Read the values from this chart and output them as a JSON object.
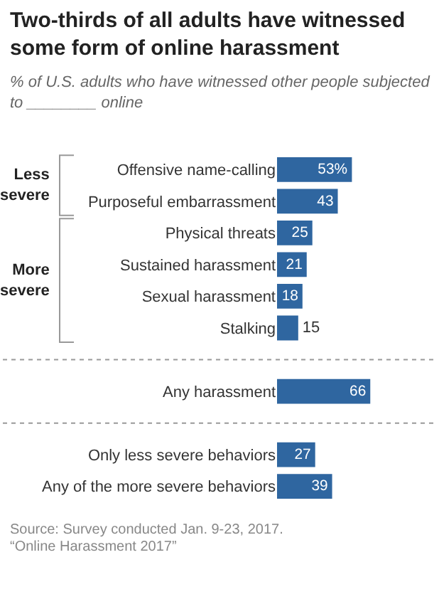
{
  "chart_data": {
    "type": "bar",
    "orientation": "horizontal",
    "title": "Two-thirds of all adults have witnessed some form of online harassment",
    "subtitle": "% of U.S. adults who have witnessed other people subjected to ________ online",
    "categories": [
      "Offensive name-calling",
      "Purposeful embarrassment",
      "Physical threats",
      "Sustained harassment",
      "Sexual harassment",
      "Stalking",
      null,
      "Any harassment",
      null,
      "Only less severe behaviors",
      "Any of the more severe behaviors"
    ],
    "values": [
      53,
      43,
      25,
      21,
      18,
      15,
      null,
      66,
      null,
      27,
      39
    ],
    "value_labels": [
      "53%",
      "43",
      "25",
      "21",
      "18",
      "15",
      null,
      "66",
      null,
      "27",
      "39"
    ],
    "color": "#2f66a0",
    "annotations": [
      "Less severe",
      "More severe",
      "Source: Survey conducted Jan. 9-23, 2017.",
      "“Online Harassment 2017”"
    ]
  }
}
